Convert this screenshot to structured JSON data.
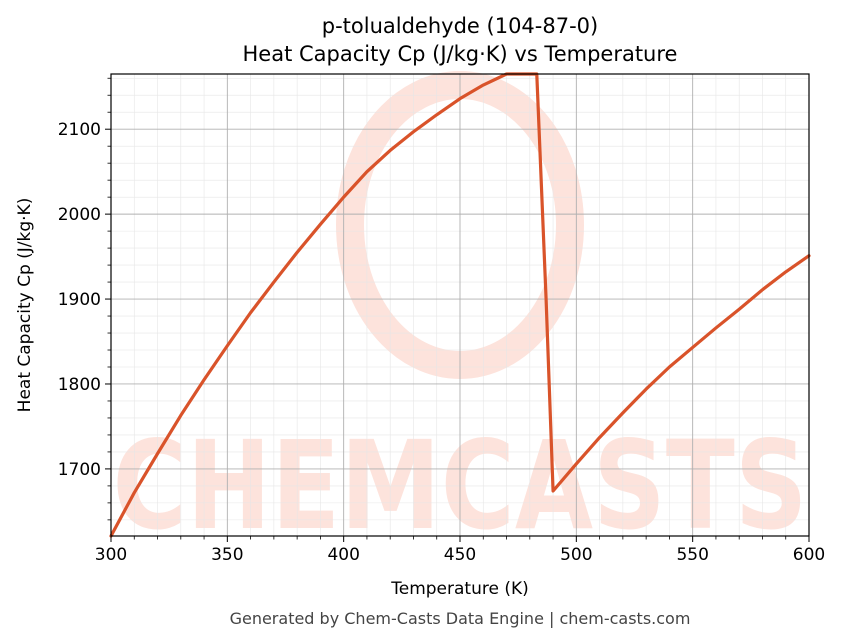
{
  "chart_data": {
    "type": "line",
    "title": "p-tolualdehyde (104-87-0)",
    "subtitle": "Heat Capacity Cp (J/kg·K) vs Temperature",
    "xlabel": "Temperature (K)",
    "ylabel": "Heat Capacity Cp (J/kg·K)",
    "xlim": [
      300,
      600
    ],
    "ylim": [
      1621,
      2165
    ],
    "x_ticks": [
      300,
      350,
      400,
      450,
      500,
      550,
      600
    ],
    "y_ticks": [
      1700,
      1800,
      1900,
      2000,
      2100
    ],
    "grid": true,
    "legend": "none",
    "series": [
      {
        "color": "#d9532a",
        "x": [
          300,
          310,
          320,
          330,
          340,
          350,
          360,
          370,
          380,
          390,
          400,
          410,
          420,
          430,
          440,
          450,
          460,
          470,
          480,
          483,
          487,
          490,
          500,
          510,
          520,
          530,
          540,
          550,
          560,
          570,
          580,
          590,
          600
        ],
        "y": [
          1621,
          1672,
          1718,
          1763,
          1805,
          1845,
          1884,
          1920,
          1955,
          1988,
          2020,
          2050,
          2075,
          2097,
          2117,
          2136,
          2152,
          2165,
          2165,
          2165,
          1900,
          1674,
          1706,
          1737,
          1766,
          1794,
          1820,
          1843,
          1866,
          1888,
          1911,
          1932,
          1951
        ]
      }
    ]
  },
  "watermark": {
    "text": "CHEMCASTS"
  },
  "footer": {
    "text": "Generated by Chem-Casts Data Engine | chem-casts.com"
  }
}
